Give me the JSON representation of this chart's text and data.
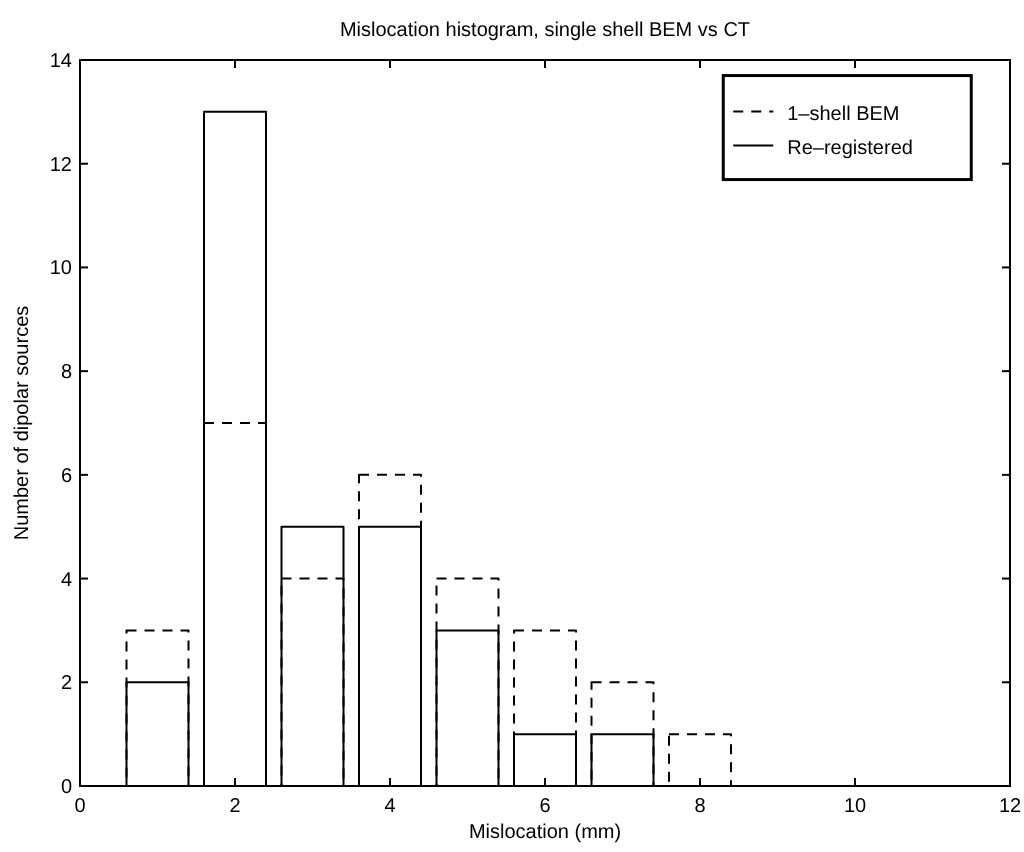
{
  "chart_data": {
    "type": "bar",
    "title": "Mislocation histogram, single shell BEM vs CT",
    "xlabel": "Mislocation (mm)",
    "ylabel": "Number of dipolar sources",
    "x": [
      1,
      2,
      3,
      4,
      5,
      6,
      7,
      8
    ],
    "series": [
      {
        "name": "1–shell BEM",
        "color": "#000000",
        "line_style": "dashed",
        "values": [
          3,
          7,
          4,
          6,
          4,
          3,
          2,
          1
        ]
      },
      {
        "name": "Re–registered",
        "color": "#000000",
        "line_style": "solid",
        "values": [
          2,
          13,
          5,
          5,
          3,
          1,
          1,
          0
        ]
      }
    ],
    "xlim": [
      0,
      12
    ],
    "xticks": [
      0,
      2,
      4,
      6,
      8,
      10,
      12
    ],
    "ylim": [
      0,
      14
    ],
    "yticks": [
      0,
      2,
      4,
      6,
      8,
      10,
      12,
      14
    ],
    "grid": false,
    "legend": "top right"
  }
}
